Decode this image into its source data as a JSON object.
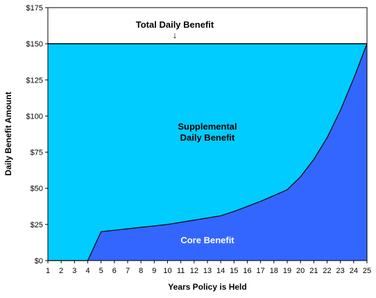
{
  "chart_data": {
    "type": "area",
    "xlabel": "Years Policy is Held",
    "ylabel": "Daily Benefit Amount",
    "ylim": [
      0,
      175
    ],
    "xlim": [
      1,
      25
    ],
    "grid": false,
    "x_ticks": [
      "1",
      "2",
      "3",
      "4",
      "5",
      "6",
      "7",
      "8",
      "9",
      "10",
      "11",
      "12",
      "13",
      "14",
      "15",
      "16",
      "17",
      "18",
      "19",
      "20",
      "21",
      "22",
      "23",
      "24",
      "25"
    ],
    "y_ticks": [
      {
        "value": 0,
        "label": "$0"
      },
      {
        "value": 25,
        "label": "$25"
      },
      {
        "value": 50,
        "label": "$50"
      },
      {
        "value": 75,
        "label": "$75"
      },
      {
        "value": 100,
        "label": "$100"
      },
      {
        "value": 125,
        "label": "$125"
      },
      {
        "value": 150,
        "label": "$150"
      },
      {
        "value": 175,
        "label": "$175"
      }
    ],
    "x": [
      1,
      2,
      3,
      4,
      5,
      6,
      7,
      8,
      9,
      10,
      11,
      12,
      13,
      14,
      15,
      16,
      17,
      18,
      19,
      20,
      21,
      22,
      23,
      24,
      25
    ],
    "series": [
      {
        "name": "Core Benefit",
        "color": "#3366ff",
        "values": [
          0,
          0,
          0,
          0,
          20,
          21,
          22,
          23,
          24,
          25,
          26.5,
          28,
          29.5,
          31,
          34,
          37.5,
          41,
          45,
          49,
          58,
          70,
          85,
          104,
          126,
          150
        ]
      },
      {
        "name": "Supplemental Daily Benefit",
        "color": "#00ccff",
        "values": [
          150,
          150,
          150,
          150,
          150,
          150,
          150,
          150,
          150,
          150,
          150,
          150,
          150,
          150,
          150,
          150,
          150,
          150,
          150,
          150,
          150,
          150,
          150,
          150,
          150
        ]
      }
    ],
    "annotations": {
      "total": "Total Daily Benefit",
      "arrow": "↓",
      "supplemental_line1": "Supplemental",
      "supplemental_line2": "Daily Benefit",
      "core": "Core Benefit"
    }
  }
}
